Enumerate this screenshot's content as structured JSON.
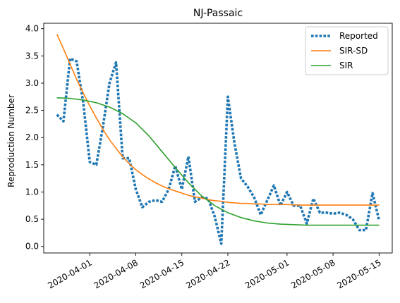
{
  "chart_data": {
    "type": "line",
    "title": "NJ-Passaic",
    "xlabel": "",
    "ylabel": "Reproduction Number",
    "ylim": [
      -0.12,
      4.1
    ],
    "xlim": [
      "2020-03-25",
      "2020-05-17"
    ],
    "xticks": [
      "2020-04-01",
      "2020-04-08",
      "2020-04-15",
      "2020-04-22",
      "2020-05-01",
      "2020-05-08",
      "2020-05-15"
    ],
    "yticks": [
      "0.0",
      "0.5",
      "1.0",
      "1.5",
      "2.0",
      "2.5",
      "3.0",
      "3.5",
      "4.0"
    ],
    "grid": false,
    "legend_position": "top-right",
    "series": [
      {
        "name": "Reported",
        "color": "#1f77b4",
        "style": "dotted",
        "x": [
          "2020-03-27",
          "2020-03-28",
          "2020-03-29",
          "2020-03-30",
          "2020-03-31",
          "2020-04-01",
          "2020-04-02",
          "2020-04-03",
          "2020-04-04",
          "2020-04-05",
          "2020-04-06",
          "2020-04-07",
          "2020-04-08",
          "2020-04-09",
          "2020-04-10",
          "2020-04-11",
          "2020-04-12",
          "2020-04-13",
          "2020-04-14",
          "2020-04-15",
          "2020-04-16",
          "2020-04-17",
          "2020-04-18",
          "2020-04-19",
          "2020-04-20",
          "2020-04-21",
          "2020-04-22",
          "2020-04-23",
          "2020-04-24",
          "2020-04-25",
          "2020-04-26",
          "2020-04-27",
          "2020-04-28",
          "2020-04-29",
          "2020-04-30",
          "2020-05-01",
          "2020-05-02",
          "2020-05-03",
          "2020-05-04",
          "2020-05-05",
          "2020-05-06",
          "2020-05-07",
          "2020-05-08",
          "2020-05-09",
          "2020-05-10",
          "2020-05-11",
          "2020-05-12",
          "2020-05-13",
          "2020-05-14",
          "2020-05-15"
        ],
        "values": [
          2.42,
          2.3,
          3.45,
          3.4,
          2.65,
          1.55,
          1.5,
          2.2,
          3.0,
          3.38,
          1.62,
          1.62,
          1.05,
          0.72,
          0.82,
          0.85,
          0.82,
          1.05,
          1.48,
          1.05,
          1.65,
          0.82,
          0.9,
          0.88,
          0.55,
          0.05,
          2.75,
          1.9,
          1.25,
          1.1,
          0.9,
          0.58,
          0.85,
          1.12,
          0.75,
          1.0,
          0.75,
          0.75,
          0.42,
          0.88,
          0.62,
          0.62,
          0.6,
          0.62,
          0.58,
          0.5,
          0.3,
          0.3,
          0.98,
          0.48
        ]
      },
      {
        "name": "SIR-SD",
        "color": "#ff7f0e",
        "style": "solid",
        "x": [
          "2020-03-27",
          "2020-03-28",
          "2020-03-29",
          "2020-03-30",
          "2020-03-31",
          "2020-04-01",
          "2020-04-02",
          "2020-04-03",
          "2020-04-04",
          "2020-04-05",
          "2020-04-06",
          "2020-04-07",
          "2020-04-08",
          "2020-04-09",
          "2020-04-10",
          "2020-04-11",
          "2020-04-12",
          "2020-04-13",
          "2020-04-14",
          "2020-04-15",
          "2020-04-16",
          "2020-04-17",
          "2020-04-18",
          "2020-04-19",
          "2020-04-20",
          "2020-04-21",
          "2020-04-22",
          "2020-04-23",
          "2020-04-24",
          "2020-04-25",
          "2020-04-26",
          "2020-04-27",
          "2020-04-28",
          "2020-04-29",
          "2020-04-30",
          "2020-05-01",
          "2020-05-03",
          "2020-05-05",
          "2020-05-08",
          "2020-05-11",
          "2020-05-15"
        ],
        "values": [
          3.9,
          3.63,
          3.35,
          3.07,
          2.82,
          2.58,
          2.36,
          2.15,
          1.96,
          1.8,
          1.65,
          1.52,
          1.41,
          1.32,
          1.24,
          1.17,
          1.11,
          1.06,
          1.02,
          0.98,
          0.94,
          0.91,
          0.89,
          0.86,
          0.84,
          0.83,
          0.81,
          0.8,
          0.79,
          0.79,
          0.78,
          0.78,
          0.77,
          0.77,
          0.77,
          0.77,
          0.76,
          0.76,
          0.76,
          0.76,
          0.76
        ]
      },
      {
        "name": "SIR",
        "color": "#2ca02c",
        "style": "solid",
        "x": [
          "2020-03-27",
          "2020-03-29",
          "2020-03-31",
          "2020-04-02",
          "2020-04-04",
          "2020-04-06",
          "2020-04-08",
          "2020-04-10",
          "2020-04-12",
          "2020-04-14",
          "2020-04-16",
          "2020-04-18",
          "2020-04-20",
          "2020-04-22",
          "2020-04-24",
          "2020-04-26",
          "2020-04-28",
          "2020-04-30",
          "2020-05-02",
          "2020-05-04",
          "2020-05-06",
          "2020-05-08",
          "2020-05-10",
          "2020-05-12",
          "2020-05-15"
        ],
        "values": [
          2.73,
          2.72,
          2.69,
          2.64,
          2.56,
          2.44,
          2.27,
          2.03,
          1.74,
          1.45,
          1.17,
          0.93,
          0.75,
          0.62,
          0.53,
          0.47,
          0.43,
          0.41,
          0.4,
          0.39,
          0.39,
          0.39,
          0.39,
          0.39,
          0.39
        ]
      }
    ]
  }
}
